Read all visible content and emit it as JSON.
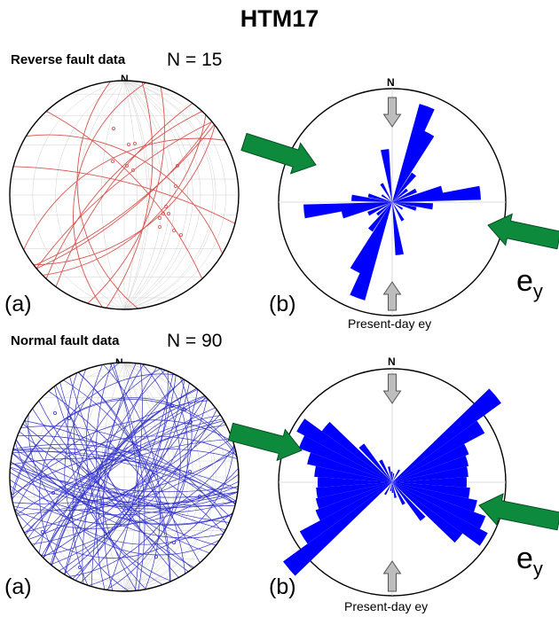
{
  "title": "HTM17",
  "reverse": {
    "heading": "Reverse fault data",
    "count": "N = 15",
    "north": "N",
    "panel_a": "(a)",
    "panel_b": "(b)",
    "ey_main": "e",
    "ey_sub": "y",
    "caption": "Present-day ey",
    "line_color": "#d9534f",
    "rose_color": "#0000ff"
  },
  "normal": {
    "heading": "Normal fault data",
    "count": "N = 90",
    "north": "N",
    "panel_a": "(a)",
    "panel_b": "(b)",
    "ey_main": "e",
    "ey_sub": "y",
    "caption": "Present-day ey",
    "line_color": "#3333cc",
    "rose_color": "#0000ff"
  },
  "colors": {
    "arrow_green": "#0d8a3c",
    "arrow_grey": "#bdbdbd",
    "grid": "#cfcfcf"
  }
}
